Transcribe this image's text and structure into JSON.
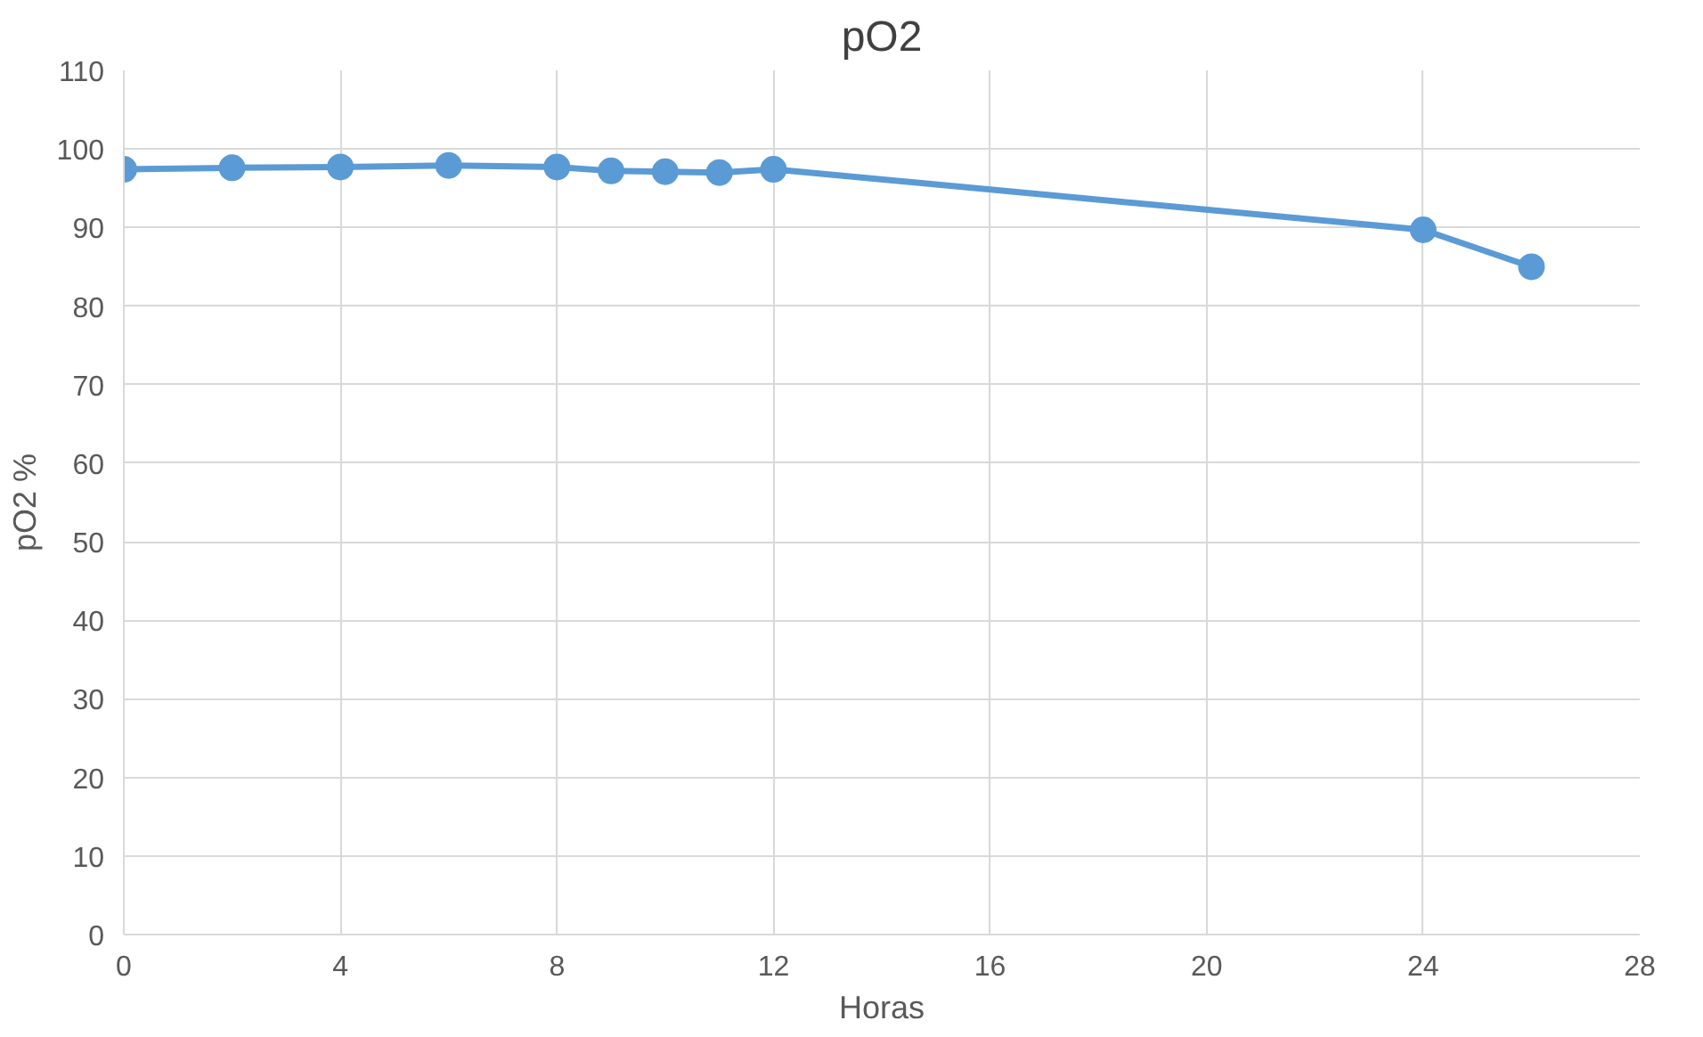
{
  "chart_data": {
    "type": "line",
    "title": "pO2",
    "xlabel": "Horas",
    "ylabel": "pO2 %",
    "x": [
      0,
      2,
      4,
      6,
      8,
      9,
      10,
      11,
      12,
      24,
      26
    ],
    "series": [
      {
        "color": "#5b9bd5",
        "values": [
          97.4,
          97.6,
          97.7,
          97.9,
          97.7,
          97.2,
          97.1,
          97.0,
          97.4,
          89.7,
          85.0
        ]
      }
    ],
    "xlim": [
      0,
      28
    ],
    "xticks": [
      0,
      4,
      8,
      12,
      16,
      20,
      24,
      28
    ],
    "ylim": [
      0,
      110
    ],
    "yticks": [
      0,
      10,
      20,
      30,
      40,
      50,
      60,
      70,
      80,
      90,
      100,
      110
    ],
    "grid": true,
    "marker": "circle",
    "line_style": "solid"
  }
}
